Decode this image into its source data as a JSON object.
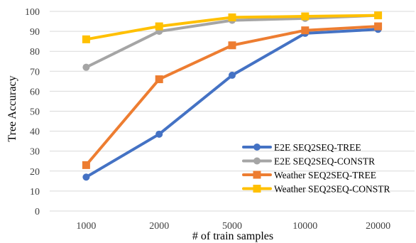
{
  "chart_data": {
    "type": "line",
    "xlabel": "# of train samples",
    "ylabel": "Tree Accuracy",
    "categories": [
      "1000",
      "2000",
      "5000",
      "10000",
      "20000"
    ],
    "ylim": [
      0,
      100
    ],
    "yticks": [
      0,
      10,
      20,
      30,
      40,
      50,
      60,
      70,
      80,
      90,
      100
    ],
    "grid": "horizontal",
    "legend_position": "bottom-right",
    "series": [
      {
        "name": "E2E SEQ2SEQ-TREE",
        "marker": "circle",
        "color": "#4472C4",
        "values": [
          17,
          38.5,
          68,
          89,
          91
        ]
      },
      {
        "name": "E2E SEQ2SEQ-CONSTR",
        "marker": "circle",
        "color": "#A5A5A5",
        "values": [
          72,
          90,
          95.5,
          96.5,
          98
        ]
      },
      {
        "name": "Weather SEQ2SEQ-TREE",
        "marker": "square",
        "color": "#ED7D31",
        "values": [
          23,
          66,
          83,
          90.5,
          92.5
        ]
      },
      {
        "name": "Weather SEQ2SEQ-CONSTR",
        "marker": "square",
        "color": "#FFC000",
        "values": [
          86,
          92.5,
          97,
          97.5,
          98
        ]
      }
    ]
  }
}
